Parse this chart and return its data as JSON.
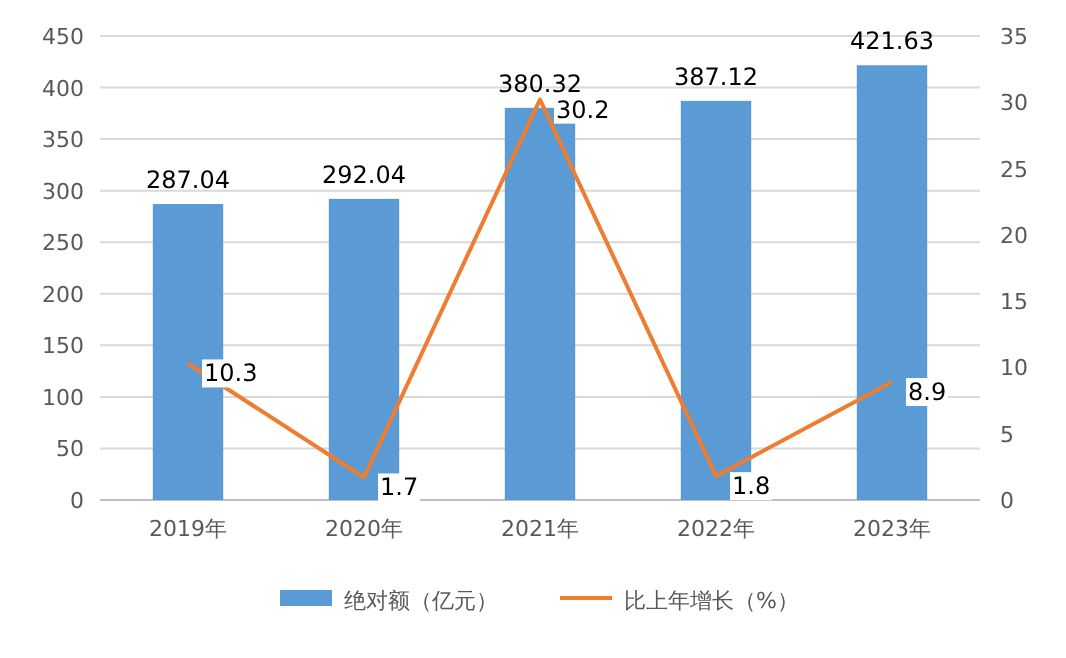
{
  "chart_data": {
    "type": "bar",
    "categories": [
      "2019年",
      "2020年",
      "2021年",
      "2022年",
      "2023年"
    ],
    "series": [
      {
        "name": "绝对额（亿元）",
        "color": "#5b9bd5",
        "values": [
          287.04,
          292.04,
          380.32,
          387.12,
          421.63
        ]
      },
      {
        "name": "比上年增长（%）",
        "type": "line",
        "axis": "y2",
        "color": "#ed7d31",
        "values": [
          10.3,
          1.7,
          30.2,
          1.8,
          8.9
        ]
      }
    ],
    "ylim": [
      0,
      450
    ],
    "yticks": [
      0,
      50,
      100,
      150,
      200,
      250,
      300,
      350,
      400,
      450
    ],
    "y2lim": [
      0,
      35
    ],
    "y2ticks": [
      0,
      5,
      10,
      15,
      20,
      25,
      30,
      35
    ],
    "grid": "y",
    "legend": "bottom",
    "data_labels": true,
    "marker": "none"
  }
}
